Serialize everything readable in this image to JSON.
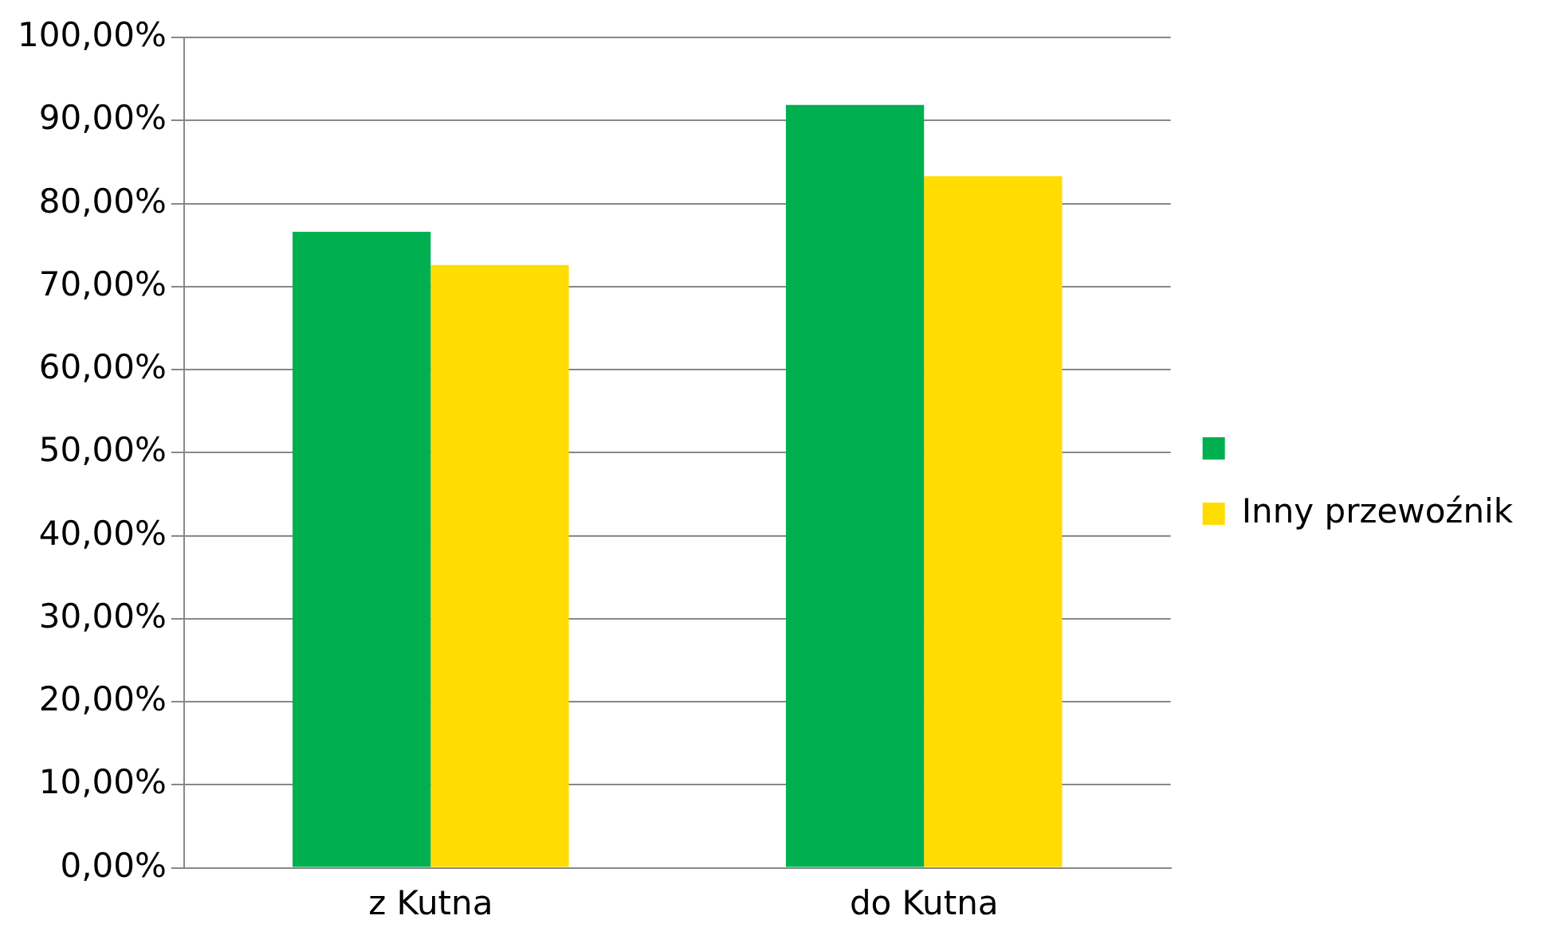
{
  "chart_data": {
    "type": "bar",
    "categories": [
      "z Kutna",
      "do Kutna"
    ],
    "series": [
      {
        "color": "#00b050",
        "values": [
          76.6,
          91.9
        ]
      },
      {
        "name": "Inny przewoźnik",
        "color": "#ffdd00",
        "values": [
          72.6,
          83.3
        ]
      }
    ],
    "ylim": [
      0,
      100
    ],
    "yticks": [
      {
        "value": 0,
        "label": "0,00%"
      },
      {
        "value": 10,
        "label": "10,00%"
      },
      {
        "value": 20,
        "label": "20,00%"
      },
      {
        "value": 30,
        "label": "30,00%"
      },
      {
        "value": 40,
        "label": "40,00%"
      },
      {
        "value": 50,
        "label": "50,00%"
      },
      {
        "value": 60,
        "label": "60,00%"
      },
      {
        "value": 70,
        "label": "70,00%"
      },
      {
        "value": 80,
        "label": "80,00%"
      },
      {
        "value": 90,
        "label": "90,00%"
      },
      {
        "value": 100,
        "label": "100,00%"
      }
    ],
    "grid": "y",
    "legend": "right"
  }
}
